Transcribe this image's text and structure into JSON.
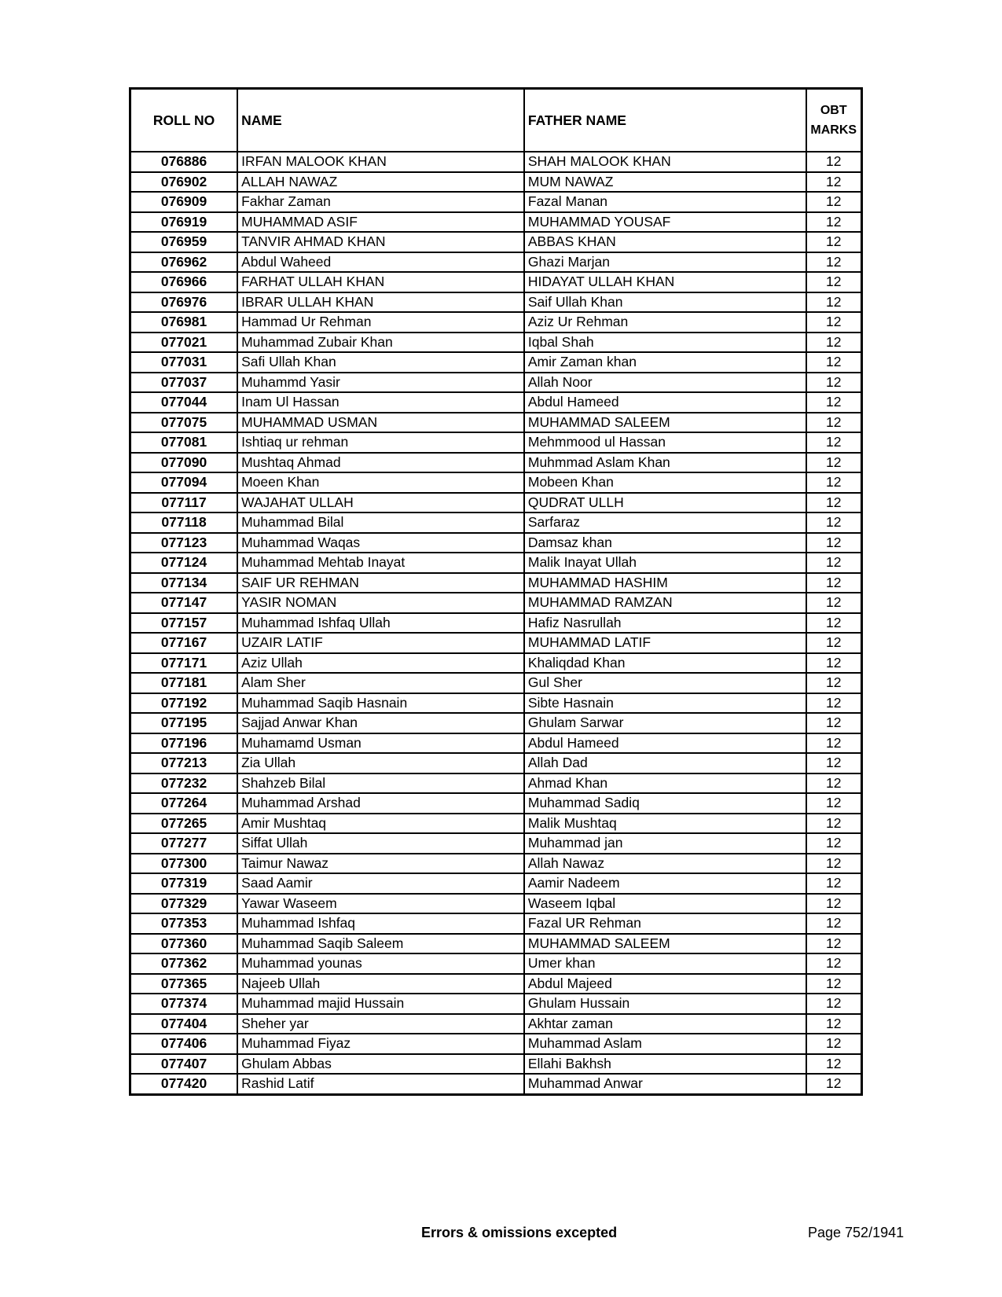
{
  "table": {
    "headers": {
      "roll_no": "ROLL NO",
      "name": "NAME",
      "father_name": "FATHER NAME",
      "obt_marks_line1": "OBT",
      "obt_marks_line2": "MARKS"
    },
    "rows": [
      [
        "076886",
        "IRFAN MALOOK KHAN",
        "SHAH MALOOK KHAN",
        "12"
      ],
      [
        "076902",
        "ALLAH NAWAZ",
        "MUM NAWAZ",
        "12"
      ],
      [
        "076909",
        "Fakhar Zaman",
        "Fazal Manan",
        "12"
      ],
      [
        "076919",
        "MUHAMMAD ASIF",
        "MUHAMMAD YOUSAF",
        "12"
      ],
      [
        "076959",
        "TANVIR AHMAD KHAN",
        "ABBAS KHAN",
        "12"
      ],
      [
        "076962",
        "Abdul Waheed",
        "Ghazi Marjan",
        "12"
      ],
      [
        "076966",
        "FARHAT ULLAH KHAN",
        "HIDAYAT ULLAH KHAN",
        "12"
      ],
      [
        "076976",
        "IBRAR ULLAH KHAN",
        "Saif Ullah Khan",
        "12"
      ],
      [
        "076981",
        "Hammad Ur Rehman",
        "Aziz Ur Rehman",
        "12"
      ],
      [
        "077021",
        "Muhammad Zubair Khan",
        "Iqbal Shah",
        "12"
      ],
      [
        "077031",
        "Safi Ullah Khan",
        "Amir Zaman khan",
        "12"
      ],
      [
        "077037",
        "Muhammd Yasir",
        "Allah Noor",
        "12"
      ],
      [
        "077044",
        "Inam Ul Hassan",
        "Abdul Hameed",
        "12"
      ],
      [
        "077075",
        "MUHAMMAD USMAN",
        "MUHAMMAD SALEEM",
        "12"
      ],
      [
        "077081",
        "Ishtiaq ur rehman",
        "Mehmmood ul Hassan",
        "12"
      ],
      [
        "077090",
        "Mushtaq Ahmad",
        "Muhmmad Aslam Khan",
        "12"
      ],
      [
        "077094",
        "Moeen Khan",
        "Mobeen Khan",
        "12"
      ],
      [
        "077117",
        "WAJAHAT ULLAH",
        "QUDRAT ULLH",
        "12"
      ],
      [
        "077118",
        "Muhammad Bilal",
        "Sarfaraz",
        "12"
      ],
      [
        "077123",
        "Muhammad Waqas",
        "Damsaz khan",
        "12"
      ],
      [
        "077124",
        "Muhammad Mehtab Inayat",
        "Malik Inayat Ullah",
        "12"
      ],
      [
        "077134",
        "SAIF UR REHMAN",
        "MUHAMMAD HASHIM",
        "12"
      ],
      [
        "077147",
        "YASIR NOMAN",
        "MUHAMMAD RAMZAN",
        "12"
      ],
      [
        "077157",
        "Muhammad Ishfaq Ullah",
        "Hafiz Nasrullah",
        "12"
      ],
      [
        "077167",
        "UZAIR LATIF",
        "MUHAMMAD LATIF",
        "12"
      ],
      [
        "077171",
        "Aziz Ullah",
        "Khaliqdad Khan",
        "12"
      ],
      [
        "077181",
        "Alam Sher",
        "Gul Sher",
        "12"
      ],
      [
        "077192",
        "Muhammad Saqib Hasnain",
        "Sibte Hasnain",
        "12"
      ],
      [
        "077195",
        "Sajjad Anwar Khan",
        "Ghulam Sarwar",
        "12"
      ],
      [
        "077196",
        "Muhamamd Usman",
        "Abdul Hameed",
        "12"
      ],
      [
        "077213",
        "Zia Ullah",
        "Allah Dad",
        "12"
      ],
      [
        "077232",
        "Shahzeb Bilal",
        "Ahmad Khan",
        "12"
      ],
      [
        "077264",
        "Muhammad Arshad",
        "Muhammad Sadiq",
        "12"
      ],
      [
        "077265",
        "Amir Mushtaq",
        "Malik Mushtaq",
        "12"
      ],
      [
        "077277",
        "Siffat Ullah",
        "Muhammad jan",
        "12"
      ],
      [
        "077300",
        "Taimur Nawaz",
        "Allah Nawaz",
        "12"
      ],
      [
        "077319",
        "Saad Aamir",
        "Aamir Nadeem",
        "12"
      ],
      [
        "077329",
        "Yawar Waseem",
        "Waseem Iqbal",
        "12"
      ],
      [
        "077353",
        "Muhammad Ishfaq",
        "Fazal UR Rehman",
        "12"
      ],
      [
        "077360",
        "Muhammad Saqib Saleem",
        "MUHAMMAD SALEEM",
        "12"
      ],
      [
        "077362",
        "Muhammad younas",
        "Umer khan",
        "12"
      ],
      [
        "077365",
        "Najeeb Ullah",
        "Abdul Majeed",
        "12"
      ],
      [
        "077374",
        "Muhammad majid Hussain",
        "Ghulam Hussain",
        "12"
      ],
      [
        "077404",
        "Sheher yar",
        "Akhtar zaman",
        "12"
      ],
      [
        "077406",
        "Muhammad Fiyaz",
        "Muhammad Aslam",
        "12"
      ],
      [
        "077407",
        "Ghulam Abbas",
        "Ellahi Bakhsh",
        "12"
      ],
      [
        "077420",
        "Rashid Latif",
        "Muhammad Anwar",
        "12"
      ]
    ]
  },
  "footer": {
    "note": "Errors & omissions excepted",
    "page": "Page 752/1941"
  }
}
